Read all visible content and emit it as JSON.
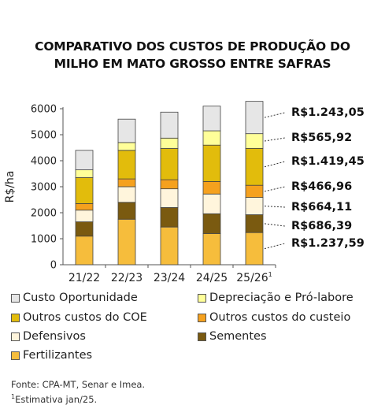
{
  "title": {
    "line1": "COMPARATIVO DOS CUSTOS DE PRODUÇÃO DO",
    "line2": "MILHO EM MATO GROSSO ENTRE SAFRAS"
  },
  "chart_data": {
    "type": "bar",
    "stacked": true,
    "ylabel": "R$/ha",
    "ylim": [
      0,
      6000
    ],
    "yticks": [
      0,
      1000,
      2000,
      3000,
      4000,
      5000,
      6000
    ],
    "categories": [
      "21/22",
      "22/23",
      "23/24",
      "24/25",
      "25/26"
    ],
    "category_superscripts": [
      "",
      "",
      "",
      "",
      "1"
    ],
    "series": [
      {
        "name": "Fertilizantes",
        "color": "#f6bd3c",
        "values": [
          1100,
          1750,
          1450,
          1200,
          1237.59
        ]
      },
      {
        "name": "Sementes",
        "color": "#7a5a10",
        "values": [
          550,
          650,
          750,
          760,
          686.39
        ]
      },
      {
        "name": "Defensivos",
        "color": "#fff5dc",
        "values": [
          450,
          600,
          720,
          760,
          664.11
        ]
      },
      {
        "name": "Outros custos do custeio",
        "color": "#f5a11e",
        "values": [
          250,
          300,
          350,
          480,
          466.96
        ]
      },
      {
        "name": "Outros custos do COE",
        "color": "#e2bc0c",
        "values": [
          1000,
          1100,
          1200,
          1400,
          1419.45
        ]
      },
      {
        "name": "Depreciação e Pró-labore",
        "color": "#ffff99",
        "values": [
          300,
          300,
          400,
          550,
          565.92
        ]
      },
      {
        "name": "Custo Oportunidade",
        "color": "#e6e6e6",
        "values": [
          750,
          900,
          1000,
          950,
          1243.05
        ]
      }
    ],
    "annotations": [
      {
        "text": "R$1.243,05",
        "series": "Custo Oportunidade"
      },
      {
        "text": "R$565,92",
        "series": "Depreciação e Pró-labore"
      },
      {
        "text": "R$1.419,45",
        "series": "Outros custos do COE"
      },
      {
        "text": "R$466,96",
        "series": "Outros custos do custeio"
      },
      {
        "text": "R$664,11",
        "series": "Defensivos"
      },
      {
        "text": "R$686,39",
        "series": "Sementes"
      },
      {
        "text": "R$1.237,59",
        "series": "Fertilizantes"
      }
    ],
    "legend": {
      "placement": "bottom",
      "order": [
        "Custo Oportunidade",
        "Depreciação e Pró-labore",
        "Outros custos do COE",
        "Outros custos do custeio",
        "Defensivos",
        "Sementes",
        "Fertilizantes"
      ]
    },
    "grid": false
  },
  "source": {
    "line1": "Fonte: CPA-MT, Senar e Imea.",
    "line2_sup": "1",
    "line2": "Estimativa jan/25."
  }
}
